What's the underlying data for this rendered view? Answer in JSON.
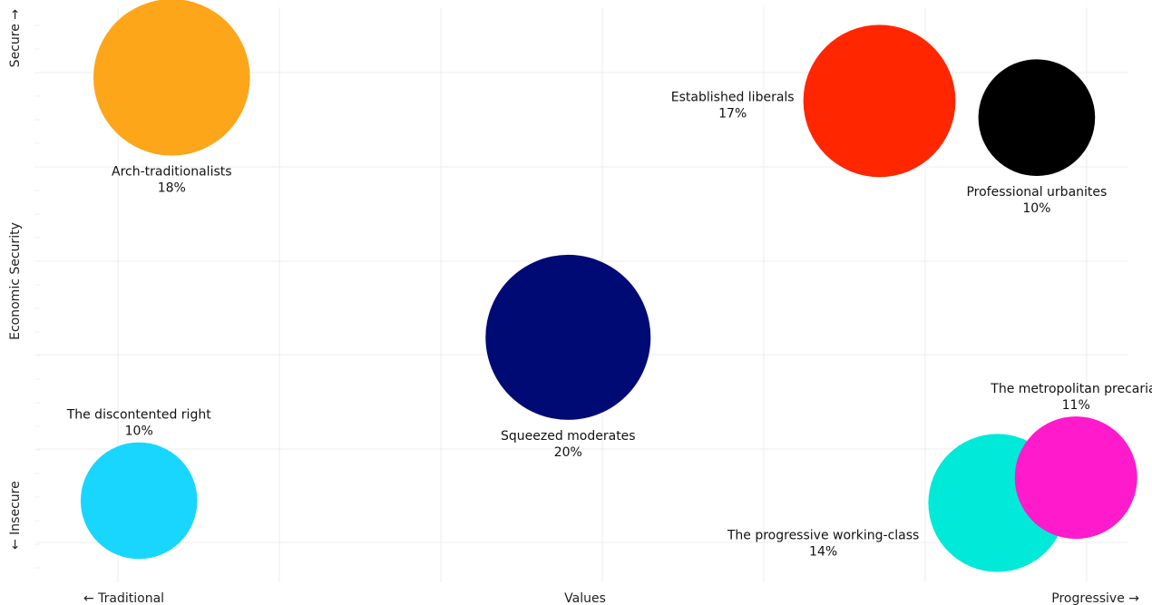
{
  "chart_data": {
    "type": "scatter",
    "subtype": "bubble",
    "title": "",
    "xlabel": "Values",
    "ylabel": "Economic Security",
    "x_axis_end_labels": {
      "left": "← Traditional",
      "right": "Progressive →"
    },
    "y_axis_end_labels": {
      "bottom": "← Insecure",
      "top": "Secure →"
    },
    "xlim": [
      0,
      10
    ],
    "ylim": [
      0,
      10
    ],
    "grid": true,
    "legend": "none",
    "points": [
      {
        "name": "Arch-traditionalists",
        "share_label": "18%",
        "share": 18,
        "x": 1.24,
        "y": 8.78,
        "color": "#FDA61A",
        "label_position": "below"
      },
      {
        "name": "Established liberals",
        "share_label": "17%",
        "share": 17,
        "x": 7.72,
        "y": 8.37,
        "color": "#FF2600",
        "label_position": "left"
      },
      {
        "name": "Professional urbanites",
        "share_label": "10%",
        "share": 10,
        "x": 9.16,
        "y": 8.08,
        "color": "#000000",
        "label_position": "below"
      },
      {
        "name": "Squeezed moderates",
        "share_label": "20%",
        "share": 20,
        "x": 4.87,
        "y": 4.26,
        "color": "#000A75",
        "label_position": "below"
      },
      {
        "name": "The discontented right",
        "share_label": "10%",
        "share": 10,
        "x": 0.94,
        "y": 1.42,
        "color": "#19D6FF",
        "label_position": "above"
      },
      {
        "name": "The progressive working-class",
        "share_label": "14%",
        "share": 14,
        "x": 8.8,
        "y": 1.38,
        "color": "#00E9D9",
        "label_position": "left"
      },
      {
        "name": "The metropolitan precariat",
        "share_label": "11%",
        "share": 11,
        "x": 9.52,
        "y": 1.82,
        "color": "#FF1ACB",
        "label_position": "above"
      }
    ]
  }
}
